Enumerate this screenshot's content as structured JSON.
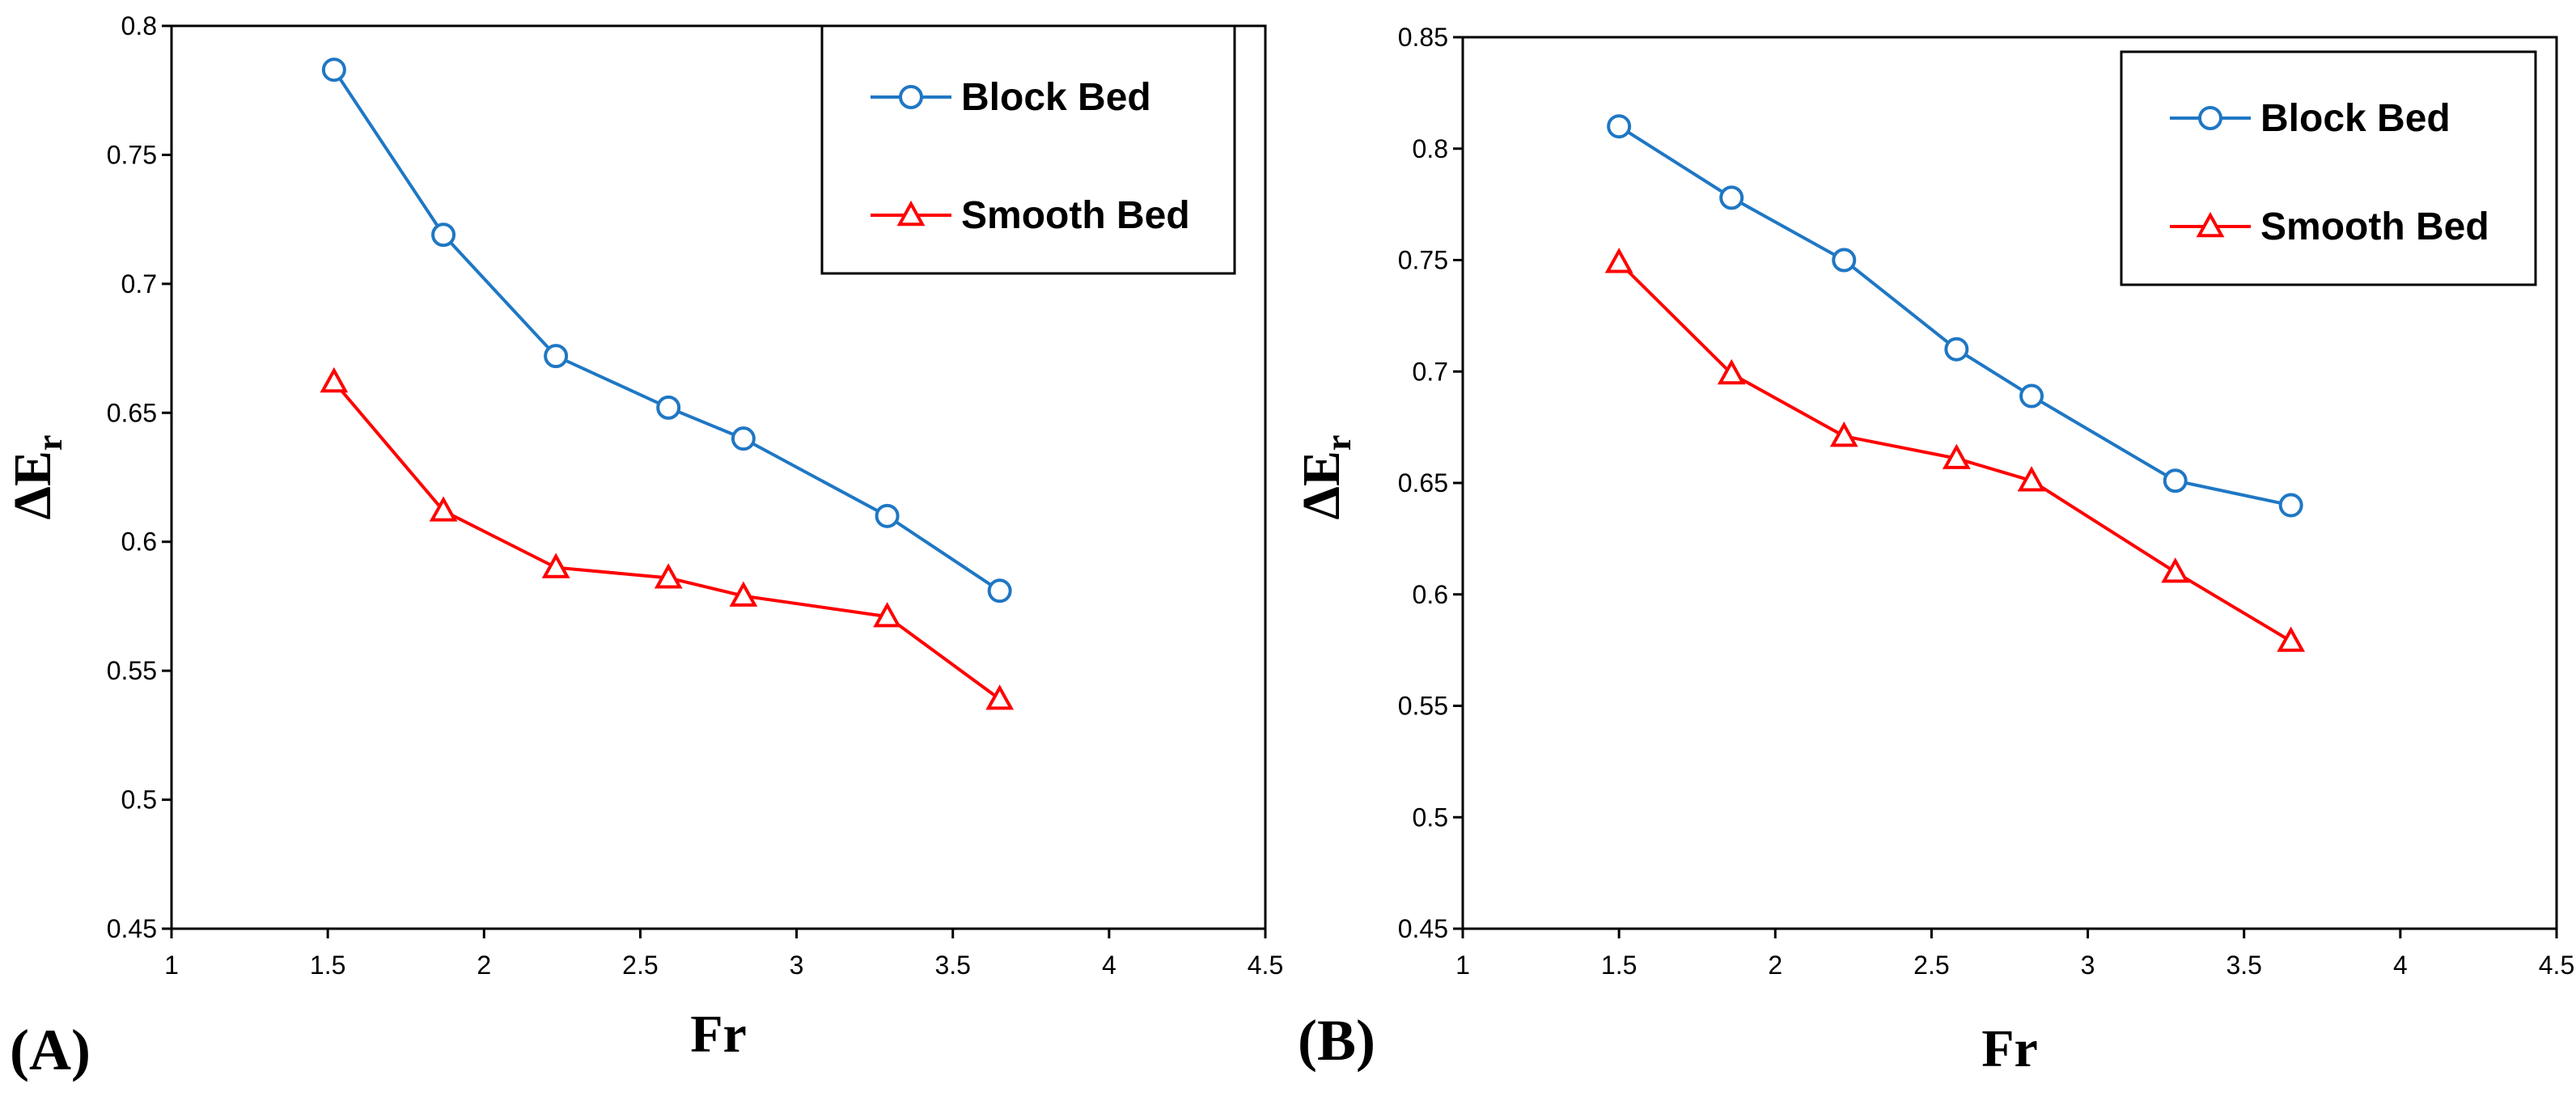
{
  "chart_data": [
    {
      "type": "line",
      "panel_label": "(A)",
      "xlabel": "Fr",
      "ylabel_main": "ΔE",
      "ylabel_sub": "r",
      "xlim": [
        1,
        4.5
      ],
      "ylim": [
        0.45,
        0.8
      ],
      "xticks": [
        "1",
        "1.5",
        "2",
        "2.5",
        "3",
        "3.5",
        "4",
        "4.5"
      ],
      "yticks": [
        "0.45",
        "0.5",
        "0.55",
        "0.6",
        "0.65",
        "0.7",
        "0.75",
        "0.8"
      ],
      "legend_position": "top-right",
      "series": [
        {
          "name": "Block Bed",
          "color": "#1f77c4",
          "marker": "circle",
          "x": [
            1.52,
            1.87,
            2.23,
            2.59,
            2.83,
            3.29,
            3.65
          ],
          "y": [
            0.783,
            0.719,
            0.672,
            0.652,
            0.64,
            0.61,
            0.581
          ]
        },
        {
          "name": "Smooth Bed",
          "color": "#ff0000",
          "marker": "triangle",
          "x": [
            1.52,
            1.87,
            2.23,
            2.59,
            2.83,
            3.29,
            3.65
          ],
          "y": [
            0.662,
            0.612,
            0.59,
            0.586,
            0.579,
            0.571,
            0.539
          ]
        }
      ]
    },
    {
      "type": "line",
      "panel_label": "(B)",
      "xlabel": "Fr",
      "ylabel_main": "ΔE",
      "ylabel_sub": "r",
      "xlim": [
        1,
        4.5
      ],
      "ylim": [
        0.45,
        0.85
      ],
      "xticks": [
        "1",
        "1.5",
        "2",
        "2.5",
        "3",
        "3.5",
        "4",
        "4.5"
      ],
      "yticks": [
        "0.45",
        "0.5",
        "0.55",
        "0.6",
        "0.65",
        "0.7",
        "0.75",
        "0.8",
        "0.85"
      ],
      "legend_position": "top-right",
      "series": [
        {
          "name": "Block Bed",
          "color": "#1f77c4",
          "marker": "circle",
          "x": [
            1.5,
            1.86,
            2.22,
            2.58,
            2.82,
            3.28,
            3.65
          ],
          "y": [
            0.81,
            0.778,
            0.75,
            0.71,
            0.689,
            0.651,
            0.64
          ]
        },
        {
          "name": "Smooth Bed",
          "color": "#ff0000",
          "marker": "triangle",
          "x": [
            1.5,
            1.86,
            2.22,
            2.58,
            2.82,
            3.28,
            3.65
          ],
          "y": [
            0.749,
            0.699,
            0.671,
            0.661,
            0.651,
            0.61,
            0.579
          ]
        }
      ]
    }
  ]
}
